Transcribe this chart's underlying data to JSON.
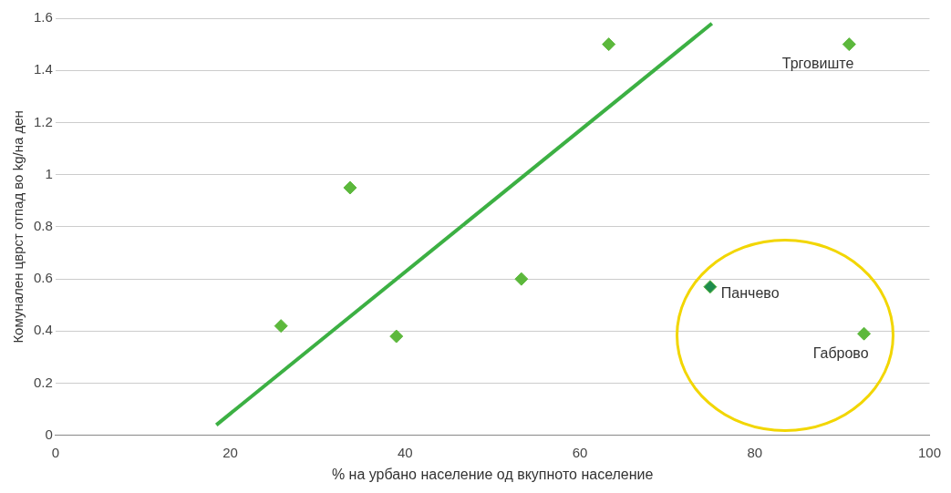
{
  "chart_data": {
    "type": "scatter",
    "xlabel": "% на урбано население од вкупното население",
    "ylabel": "Комунален цврст отпад во kg/на ден",
    "xlim": [
      0,
      100
    ],
    "xticks": [
      0,
      20,
      40,
      60,
      80,
      100
    ],
    "ylim": [
      0,
      1.6
    ],
    "yticks": [
      0,
      0.2,
      0.4,
      0.6,
      0.8,
      {
        "value": 1,
        "label": "1"
      },
      1.2,
      1.4,
      1.6
    ],
    "grid": "y",
    "legend": false,
    "marker": "diamond",
    "series": [
      {
        "color": "#5cb83c",
        "colors": [
          "#5cb83c",
          "#5cb83c",
          "#5cb83c",
          "#5cb83c",
          "#5cb83c",
          "#1e8c4e",
          "#5cb83c",
          "#5cb83c"
        ],
        "x": [
          25.8,
          33.7,
          39.0,
          53.3,
          63.3,
          74.9,
          90.8,
          92.5
        ],
        "values": [
          0.42,
          0.95,
          0.38,
          0.6,
          1.5,
          0.57,
          1.5,
          0.39
        ]
      },
      {
        "type": "line",
        "color": "#3cb043",
        "x": [
          18.4,
          75.1
        ],
        "values": [
          0.04,
          1.58
        ],
        "marker": "none"
      }
    ],
    "annotations": [
      {
        "text": "Трговиште",
        "x": 90.8,
        "y": 1.5
      },
      {
        "text": "Панчево",
        "x": 74.9,
        "y": 0.57
      },
      {
        "text": "Габрово",
        "x": 92.5,
        "y": 0.39
      }
    ]
  }
}
